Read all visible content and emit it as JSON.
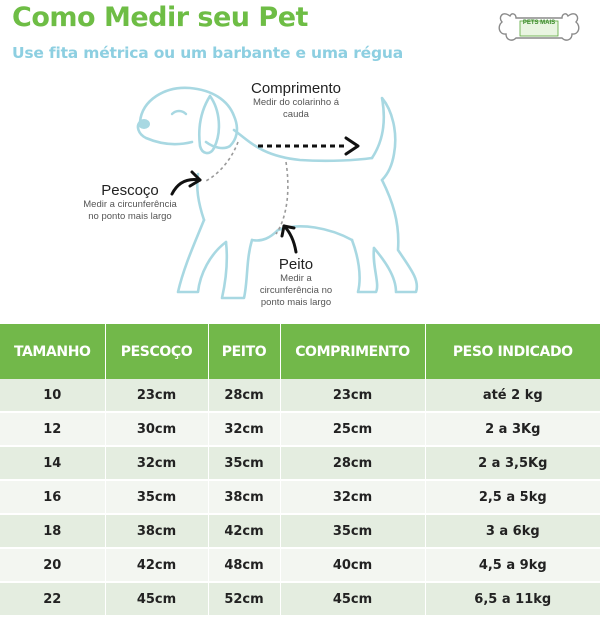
{
  "header": {
    "title": "Como Medir seu Pet",
    "subtitle": "Use fita métrica ou um barbante e uma régua"
  },
  "logo": {
    "icon": "bone-logo-icon",
    "text": "PETS MAIS"
  },
  "diagram": {
    "comprimento": {
      "label": "Comprimento",
      "desc1": "Medir do colarinho á",
      "desc2": "cauda"
    },
    "pescoco": {
      "label": "Pescoço",
      "desc1": "Medir a circunferência",
      "desc2": "no ponto mais largo"
    },
    "peito": {
      "label": "Peito",
      "desc1": "Medir a",
      "desc2": "circunferência no",
      "desc3": "ponto mais largo"
    }
  },
  "table": {
    "headers": [
      "TAMANHO",
      "PESCOÇO",
      "PEITO",
      "COMPRIMENTO",
      "PESO INDICADO"
    ],
    "rows": [
      [
        "10",
        "23cm",
        "28cm",
        "23cm",
        "até 2 kg"
      ],
      [
        "12",
        "30cm",
        "32cm",
        "25cm",
        "2 a 3Kg"
      ],
      [
        "14",
        "32cm",
        "35cm",
        "28cm",
        "2 a 3,5Kg"
      ],
      [
        "16",
        "35cm",
        "38cm",
        "32cm",
        "2,5 a 5kg"
      ],
      [
        "18",
        "38cm",
        "42cm",
        "35cm",
        "3 a 6kg"
      ],
      [
        "20",
        "42cm",
        "48cm",
        "40cm",
        "4,5 a 9kg"
      ],
      [
        "22",
        "45cm",
        "52cm",
        "45cm",
        "6,5 a 11kg"
      ]
    ]
  },
  "colors": {
    "title_green": "#6ebd45",
    "subtitle_blue": "#8dcfe1",
    "header_green": "#72b84a",
    "dog_outline": "#a8d8e2",
    "row_odd": "#e4ede0",
    "row_even": "#f3f6f1"
  }
}
